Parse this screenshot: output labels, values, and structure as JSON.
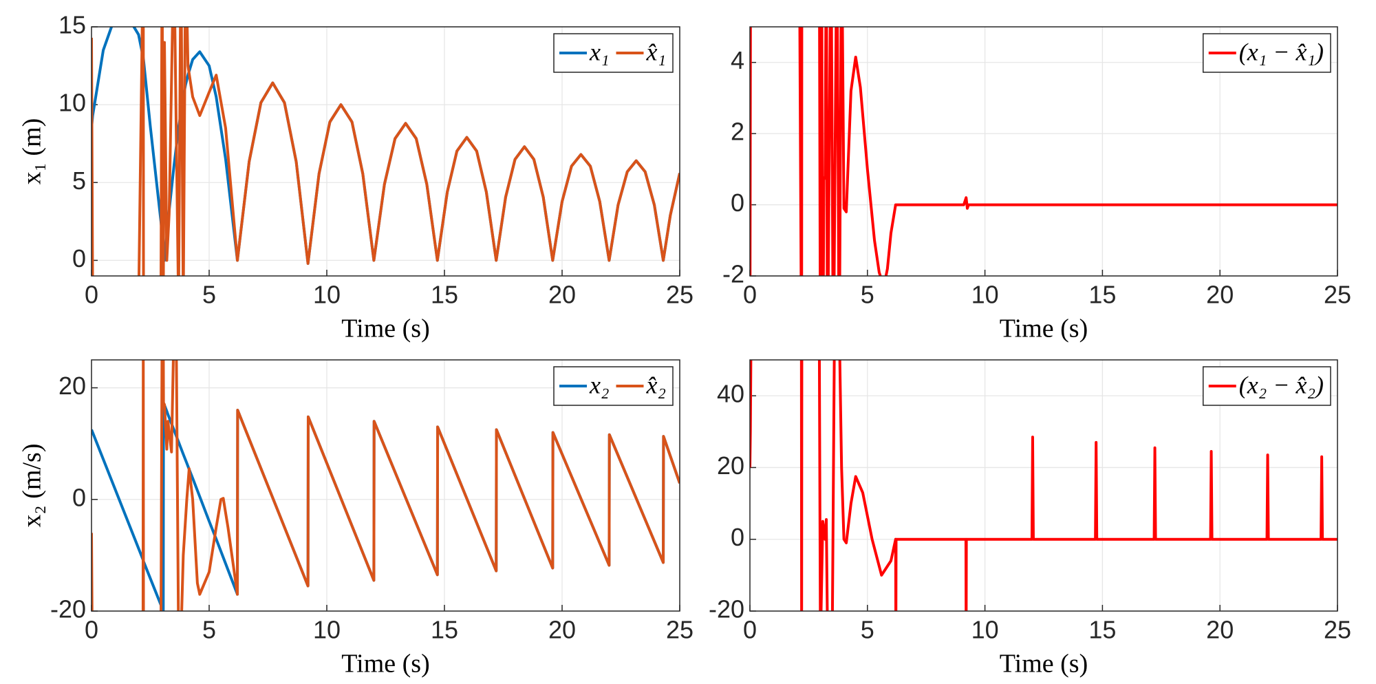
{
  "chart_data": [
    {
      "type": "line",
      "xlabel": "Time (s)",
      "ylabel": "x₁ (m)",
      "grid": true,
      "legend": "northeast",
      "xlim": [
        0,
        25
      ],
      "ylim": [
        -1,
        15
      ],
      "xticks": [
        0,
        5,
        10,
        15,
        20,
        25
      ],
      "yticks": [
        0,
        5,
        10,
        15
      ],
      "x": [
        0,
        0.05,
        0.5,
        1.2,
        2.0,
        2.2,
        2.21,
        2.5,
        2.95,
        3.0,
        3.05,
        3.1,
        3.2,
        3.3,
        3.5,
        3.7,
        3.8,
        3.9,
        4.0,
        4.1,
        4.3,
        4.6,
        5.0,
        5.3,
        5.7,
        6.2,
        6.7,
        7.2,
        7.7,
        8.2,
        8.7,
        9.2,
        9.67,
        10.13,
        10.6,
        11.07,
        11.53,
        12.0,
        12.45,
        12.9,
        13.35,
        13.8,
        14.25,
        14.7,
        15.12,
        15.53,
        15.95,
        16.37,
        16.78,
        17.2,
        17.6,
        18.0,
        18.4,
        18.8,
        19.2,
        19.6,
        20.0,
        20.4,
        20.8,
        21.2,
        21.6,
        22.0,
        22.38,
        22.77,
        23.15,
        23.53,
        23.92,
        24.3,
        24.6,
        25
      ],
      "series": [
        {
          "name": "x₁",
          "color": "#0072BD",
          "values": [
            8.5,
            9.3,
            13.5,
            16.5,
            14.5,
            13.0,
            12.9,
            8.6,
            2.5,
            1.7,
            0.9,
            0,
            1.6,
            3.2,
            6.0,
            8.5,
            9.5,
            10.5,
            11.3,
            11.9,
            12.9,
            13.4,
            12.5,
            10.5,
            6.5,
            0,
            6.34,
            10.13,
            11.4,
            10.13,
            6.34,
            -0.2,
            5.56,
            8.89,
            10,
            8.89,
            5.56,
            0,
            4.89,
            7.82,
            8.8,
            7.82,
            4.89,
            0,
            4.39,
            7.02,
            7.9,
            7.02,
            4.39,
            0,
            4.06,
            6.49,
            7.3,
            6.49,
            4.06,
            0,
            3.78,
            6.05,
            6.8,
            6.05,
            3.78,
            0,
            3.56,
            5.69,
            6.4,
            5.69,
            3.56,
            0,
            2.9,
            5.6
          ]
        },
        {
          "name": "x̂₁",
          "color": "#D95319",
          "values": [
            14.3,
            -3,
            -3,
            -3,
            -3,
            20,
            -3,
            -3,
            -3,
            20,
            -3,
            14,
            0,
            3,
            20,
            -3,
            20,
            -3,
            20,
            12.5,
            10.5,
            9.3,
            10.8,
            11.9,
            8.5,
            0,
            6.34,
            10.13,
            11.4,
            10.13,
            6.34,
            -0.2,
            5.56,
            8.89,
            10,
            8.89,
            5.56,
            0,
            4.89,
            7.82,
            8.8,
            7.82,
            4.89,
            0,
            4.39,
            7.02,
            7.9,
            7.02,
            4.39,
            0,
            4.06,
            6.49,
            7.3,
            6.49,
            4.06,
            0,
            3.78,
            6.05,
            6.8,
            6.05,
            3.78,
            0,
            3.56,
            5.69,
            6.4,
            5.69,
            3.56,
            0,
            2.9,
            5.6
          ]
        }
      ]
    },
    {
      "type": "line",
      "xlabel": "Time (s)",
      "grid": true,
      "legend": "northeast",
      "xlim": [
        0,
        25
      ],
      "ylim": [
        -2,
        5
      ],
      "xticks": [
        0,
        5,
        10,
        15,
        20,
        25
      ],
      "yticks": [
        -2,
        0,
        2,
        4
      ],
      "x": [
        0,
        0.03,
        2.1,
        2.2,
        2.21,
        2.95,
        3.0,
        3.05,
        3.1,
        3.15,
        3.2,
        3.25,
        3.3,
        3.45,
        3.55,
        3.7,
        3.8,
        3.9,
        4.0,
        4.1,
        4.2,
        4.3,
        4.5,
        4.7,
        5.0,
        5.3,
        5.5,
        5.7,
        5.85,
        6.0,
        6.2,
        9.1,
        9.2,
        9.25,
        9.3,
        25
      ],
      "series": [
        {
          "name": "(x₁ − x̂₁)",
          "color": "#FF0000",
          "values": [
            -5,
            8,
            8,
            -5,
            8,
            8,
            -5,
            8,
            -5,
            0.7,
            0.8,
            8,
            -5,
            8,
            -5,
            8,
            -5,
            8,
            -0.1,
            -0.2,
            1.5,
            3.2,
            4.15,
            3.3,
            1.0,
            -1.0,
            -1.9,
            -2.3,
            -1.8,
            -0.8,
            0,
            0,
            0.2,
            -0.1,
            0,
            0
          ]
        }
      ]
    },
    {
      "type": "line",
      "xlabel": "Time (s)",
      "ylabel": "x₂ (m/s)",
      "grid": true,
      "legend": "northeast",
      "xlim": [
        0,
        25
      ],
      "ylim": [
        -20,
        25
      ],
      "xticks": [
        0,
        5,
        10,
        15,
        20,
        25
      ],
      "yticks": [
        -20,
        0,
        20
      ],
      "x": [
        0,
        0.03,
        2.19,
        2.2,
        2.21,
        2.95,
        3.0,
        3.05,
        3.06,
        3.1,
        3.2,
        3.25,
        3.4,
        3.5,
        3.6,
        3.7,
        3.8,
        3.9,
        4.05,
        4.15,
        4.3,
        4.5,
        4.6,
        5.0,
        5.3,
        5.5,
        5.6,
        5.8,
        6.2,
        6.21,
        9.2,
        9.21,
        12.0,
        12.01,
        14.7,
        14.71,
        17.2,
        17.21,
        19.6,
        19.61,
        22.0,
        22.01,
        24.3,
        24.31,
        25
      ],
      "series": [
        {
          "name": "x₂",
          "color": "#0072BD",
          "values": [
            12.5,
            12.2,
            -10.8,
            -11.0,
            -11.1,
            -18.9,
            -19.5,
            -20,
            17.3,
            16.9,
            15.8,
            15.2,
            13.6,
            12.5,
            11.4,
            10.3,
            9.2,
            8.1,
            6.5,
            5.4,
            3.8,
            1.6,
            0.5,
            -3.9,
            -7.1,
            -9.3,
            -10.4,
            -12.6,
            -17,
            16,
            -15.5,
            14.8,
            -14.5,
            14,
            -13.5,
            13,
            -12.8,
            12.5,
            -12.3,
            12,
            -11.8,
            11.6,
            -11.3,
            11.3,
            2.9
          ]
        },
        {
          "name": "x̂₂",
          "color": "#D95319",
          "values": [
            -6,
            -25,
            -25,
            30,
            -25,
            -25,
            30,
            30,
            17.3,
            17,
            9,
            14,
            8.5,
            30,
            30,
            -25,
            -25,
            -10,
            0,
            5.5,
            0,
            -15,
            -17,
            -13,
            -5,
            0,
            0.2,
            -5,
            -17,
            16,
            -15.5,
            14.8,
            -14.5,
            14,
            -13.5,
            13,
            -12.8,
            12.5,
            -12.3,
            12,
            -11.8,
            11.6,
            -11.3,
            11.3,
            2.9
          ]
        }
      ]
    },
    {
      "type": "line",
      "xlabel": "Time (s)",
      "grid": true,
      "legend": "northeast",
      "xlim": [
        0,
        25
      ],
      "ylim": [
        -20,
        50
      ],
      "xticks": [
        0,
        5,
        10,
        15,
        20,
        25
      ],
      "yticks": [
        -20,
        0,
        20,
        40
      ],
      "x": [
        0,
        0.02,
        0.05,
        0.1,
        2.19,
        2.2,
        2.21,
        2.95,
        3.0,
        3.1,
        3.2,
        3.25,
        3.3,
        3.4,
        3.5,
        3.6,
        3.7,
        3.8,
        3.9,
        4.0,
        4.1,
        4.3,
        4.5,
        4.8,
        5.2,
        5.6,
        6.0,
        6.2,
        6.21,
        6.22,
        9.19,
        9.2,
        9.21,
        12.0,
        12.03,
        12.06,
        14.7,
        14.73,
        14.76,
        17.2,
        17.23,
        17.26,
        19.6,
        19.63,
        19.66,
        22.0,
        22.03,
        22.06,
        24.3,
        24.33,
        24.36,
        25
      ],
      "series": [
        {
          "name": "(x₂ − x̂₂)",
          "color": "#FF0000",
          "values": [
            20,
            30,
            60,
            60,
            60,
            -30,
            60,
            60,
            -30,
            5,
            0,
            5.5,
            -25,
            -30,
            -30,
            60,
            60,
            60,
            20,
            0,
            -1,
            10,
            17.5,
            13,
            0,
            -10,
            -6,
            0,
            -30,
            0,
            0,
            -30,
            0,
            0,
            28.5,
            0,
            0,
            27,
            0,
            0,
            25.5,
            0,
            0,
            24.5,
            0,
            0,
            23.5,
            0,
            0,
            23,
            0,
            0
          ]
        }
      ]
    }
  ]
}
